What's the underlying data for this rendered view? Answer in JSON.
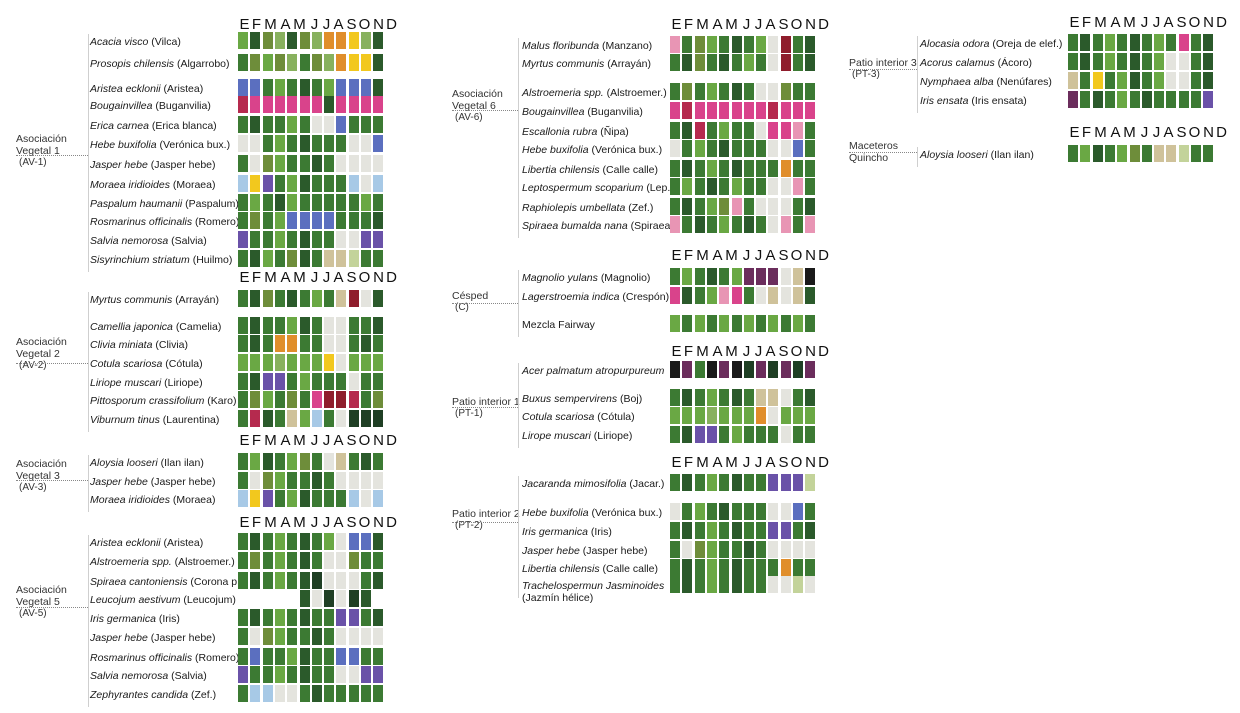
{
  "months": [
    "E",
    "F",
    "M",
    "A",
    "M",
    "J",
    "J",
    "A",
    "S",
    "O",
    "N",
    "D"
  ],
  "palette": {
    "G": "#3c7a33",
    "D": "#2b5a2b",
    "L": "#6aa844",
    "O": "#6e8d3a",
    "K": "#1f3f24",
    "S": "#88b15e",
    "P": "#d9438b",
    "R": "#b52a4e",
    "p": "#e895b4",
    "V": "#6a52a8",
    "B": "#5b6fbf",
    "b": "#a7c9e6",
    "Y": "#f2c81e",
    "A": "#e08e2b",
    "W": "#e4e4de",
    "T": "#cfc29a",
    "M": "#8f1d2c",
    "X": "#1a1a1a",
    "U": "#6b2d5c",
    "Q": "#c3d39a"
  },
  "columns": [
    {
      "month_header_tops": [
        17,
        270,
        433,
        515
      ],
      "groups": [
        {
          "name_lines": [
            "Asociación",
            "Vegetal 1"
          ],
          "code": "(AV-1)",
          "plants": [
            {
              "sci": "Acacia visco",
              "common": "(Vilca)",
              "cells": "LDOSDOSAAYSD"
            },
            {
              "sci": "Prosopis chilensis",
              "common": "(Algarrobo)",
              "cells": "GOLOSGOSAYYD"
            },
            {
              "sci": "Aristea ecklonii",
              "common": "(Aristea)",
              "cells": "BBGLGDGLBBBD"
            },
            {
              "sci": "Bougainvillea",
              "common": "(Buganvilia)",
              "cells": "RPPPPPPDPPPP"
            },
            {
              "sci": "Erica carnea",
              "common": "(Erica blanca)",
              "cells": "GDGGLGWWBGGG"
            },
            {
              "sci": "Hebe buxifolia",
              "common": " (Verónica bux.)",
              "cells": "WWGLGDGGGWWB"
            },
            {
              "sci": "Jasper hebe",
              "common": "(Jasper hebe)",
              "cells": "GWOLGGDGWWWW"
            },
            {
              "sci": "Moraea iridioides",
              "common": "(Moraea)",
              "cells": "bYVGLDGGGbWb"
            },
            {
              "sci": "Paspalum haumanii",
              "common": "(Paspalum)",
              "cells": "GLGDLGGGGGLG"
            },
            {
              "sci": "Rosmarinus officinalis",
              "common": "(Romero)",
              "cells": "GOGLBBBBGGGD"
            },
            {
              "sci": "Salvia nemorosa",
              "common": "(Salvia)",
              "cells": "VGGLGDGGWWVV"
            },
            {
              "sci": "Sisyrinchium striatum",
              "common": "(Huilmo)",
              "cells": "GDLGODGTTQGG"
            }
          ]
        },
        {
          "name_lines": [
            "Asociación",
            "Vegetal 2"
          ],
          "code": "(AV-2)",
          "plants": [
            {
              "sci": "Myrtus communis",
              "common": "(Arrayán)",
              "cells": "GDOGDGLGTMWD"
            },
            {
              "sci": "Camellia japonica",
              "common": "(Camelia)",
              "cells": "GDGGLDGWWGGD"
            },
            {
              "sci": "Clivia miniata",
              "common": "(Clivia)",
              "cells": "GDGAAGGWWGDG"
            },
            {
              "sci": "Cotula scariosa",
              "common": "(Cótula)",
              "cells": "LLLSLLLYWLLL"
            },
            {
              "sci": "Liriope muscari",
              "common": "(Liriope)",
              "cells": "GDVVGLGGGWGG"
            },
            {
              "sci": "Pittosporum crassifolium",
              "common": "(Karo)",
              "cells": "GOLGOGPMMRGO"
            },
            {
              "sci": "Viburnum tinus",
              "common": " (Laurentina)",
              "cells": "GRDGTLbGWKKK"
            }
          ]
        },
        {
          "name_lines": [
            "Asociación",
            "Vegetal 3"
          ],
          "code": "(AV-3)",
          "plants": [
            {
              "sci": "Aloysia looseri",
              "common": "(Ilan ilan)",
              "cells": "GLDGLOGWTGDG"
            },
            {
              "sci": "Jasper hebe",
              "common": "(Jasper hebe)",
              "cells": "GWOLGGDGWWWW"
            },
            {
              "sci": "Moraea iridioides",
              "common": "(Moraea)",
              "cells": "bYVGLDGGGbWb"
            }
          ]
        },
        {
          "name_lines": [
            "Asociación",
            "Vegetal 5"
          ],
          "code": "(AV-5)",
          "plants": [
            {
              "sci": "Aristea ecklonii",
              "common": "(Aristea)",
              "cells": "GDGLGDGLWBBD"
            },
            {
              "sci": "Alstroemeria spp.",
              "common": "(Alstroemer.)",
              "cells": "GOGLGDGWWOGG"
            },
            {
              "sci": "Spiraea cantoniensis",
              "common": "(Corona p.)",
              "cells": "GDGLGDKWWWGD"
            },
            {
              "sci": "Leucojum aestivum",
              "common": "(Leucojum)",
              "cells": "     DWKWKD "
            },
            {
              "sci": "Iris germanica",
              "common": "(Iris)",
              "cells": "GDGLGDGGVVGD"
            },
            {
              "sci": "Jasper hebe",
              "common": "(Jasper hebe)",
              "cells": "GWOLGGDGWWWW"
            },
            {
              "sci": "Rosmarinus officinalis",
              "common": "(Romero)",
              "cells": "GBGGLDGGBBGG"
            },
            {
              "sci": "Salvia nemorosa",
              "common": "(Salvia)",
              "cells": "VGGLGDGGWWVV"
            },
            {
              "sci": "Zephyrantes candida",
              "common": "(Zef.)",
              "cells": "GbbWWGDGGGGG"
            }
          ]
        }
      ]
    },
    {
      "month_header_tops": [
        17,
        248,
        344,
        455
      ],
      "groups": [
        {
          "name_lines": [
            "Asociación",
            "Vegetal 6"
          ],
          "code": "(AV-6)",
          "plants": [
            {
              "sci": "Malus floribunda",
              "common": "(Manzano)",
              "cells": "pGOLGDGLWMGD"
            },
            {
              "sci": "Myrtus communis",
              "common": "(Arrayán)",
              "cells": "GDOGDGLGWMGD"
            },
            {
              "sci": "Alstroemeria spp.",
              "common": "(Alstroemer.)",
              "cells": "GOGLGDGWWOGG"
            },
            {
              "sci": "Bougainvillea",
              "common": "(Buganvilia)",
              "cells": "PRPPPPPPRPPP"
            },
            {
              "sci": "Escallonia rubra",
              "common": "(Ñipa)",
              "cells": "GDRGLGGWPPpG"
            },
            {
              "sci": "Hebe buxifolia",
              "common": " (Verónica bux.)",
              "cells": "WGLGDGGGWWBG"
            },
            {
              "sci": "Libertia chilensis",
              "common": "(Calle calle)",
              "cells": "GDGLGDGGGAGG"
            },
            {
              "sci": "Leptospermum scoparium",
              "common": "(Lep.)",
              "cells": "GLGDGLGGWWpG"
            },
            {
              "sci": "Raphiolepis umbellata",
              "common": "(Zef.)",
              "cells": "GDGLOpGWWWGD"
            },
            {
              "sci": "Spiraea bumalda nana",
              "common": "(Spiraea)",
              "cells": "pGDGLGDGWpGp"
            }
          ]
        },
        {
          "name_lines": [
            "Césped"
          ],
          "code": "(C)",
          "plants": [
            {
              "sci": "Magnolio yulans",
              "common": "(Magnolio)",
              "cells": "GLGDGLUUUWTX"
            },
            {
              "sci": "Lagerstroemia indica",
              "common": "(Crespón)",
              "cells": "PDGLpPGWTWTD"
            },
            {
              "sci": "Mezcla Fairway",
              "common": "",
              "plain": true,
              "cells": "LGLGLGLGLGLG"
            }
          ]
        },
        {
          "name_lines": [
            "Patio interior 1"
          ],
          "code": "(PT-1)",
          "plants": [
            {
              "sci": "Acer palmatum atropurpureum",
              "common": "",
              "cells": "XUGXUXKUKUKU"
            },
            {
              "sci": "Buxus sempervirens",
              "common": "(Boj)",
              "cells": "GDGLGDGTTWGD"
            },
            {
              "sci": "Cotula scariosa",
              "common": "(Cótula)",
              "cells": "LLLSLLLAWLLL"
            },
            {
              "sci": "Lirope muscari",
              "common": " (Liriope)",
              "cells": "GDVVGLGGGWGG"
            }
          ]
        },
        {
          "name_lines": [
            "Patio interior 2"
          ],
          "code": "(PT-2)",
          "plants": [
            {
              "sci": "Jacaranda mimosifolia",
              "common": "(Jacar.)",
              "cells": "GDGLGDGGVVVQ"
            },
            {
              "sci": "Hebe buxifolia",
              "common": " (Verónica bux.)",
              "cells": "WGLGDGGGWWBG"
            },
            {
              "sci": "Iris germanica",
              "common": "(Iris)",
              "cells": "GDGLGDGGVVGD"
            },
            {
              "sci": "Jasper hebe",
              "common": "(Jasper hebe)",
              "cells": "GWOLGGDGWWWW"
            },
            {
              "sci": "Libertia chilensis",
              "common": "(Calle calle)",
              "cells": "GDGLGDGGGAGG"
            },
            {
              "sci": "Trachelospermun Jasminoides",
              "common": "(Jazmín hélice)",
              "two_line": true,
              "cells": "GDGLGDGGWWQW"
            }
          ]
        }
      ]
    },
    {
      "month_header_tops": [
        15,
        125
      ],
      "groups": [
        {
          "name_lines": [
            "Patio interior 3"
          ],
          "code": "(PT-3)",
          "plants": [
            {
              "sci": "Alocasia odora",
              "common": "(Oreja de elef.)",
              "cells": "GDGLGDGLGPGD"
            },
            {
              "sci": "Acorus calamus",
              "common": " (Ácoro)",
              "cells": "GDGLGDGLWWGD"
            },
            {
              "sci": "Nymphaea alba",
              "common": "(Nenúfares)",
              "cells": "TGYGLDGLWWGD"
            },
            {
              "sci": "Iris ensata",
              "common": "(Iris ensata)",
              "cells": "UGDGLGDGGGGV"
            }
          ]
        },
        {
          "name_lines": [
            "Maceteros",
            "Quincho"
          ],
          "code": "",
          "plants": [
            {
              "sci": "Aloysia looseri",
              "common": "(Ilan ilan)",
              "cells": "GLDGLOGTTQGG"
            }
          ]
        }
      ]
    }
  ]
}
